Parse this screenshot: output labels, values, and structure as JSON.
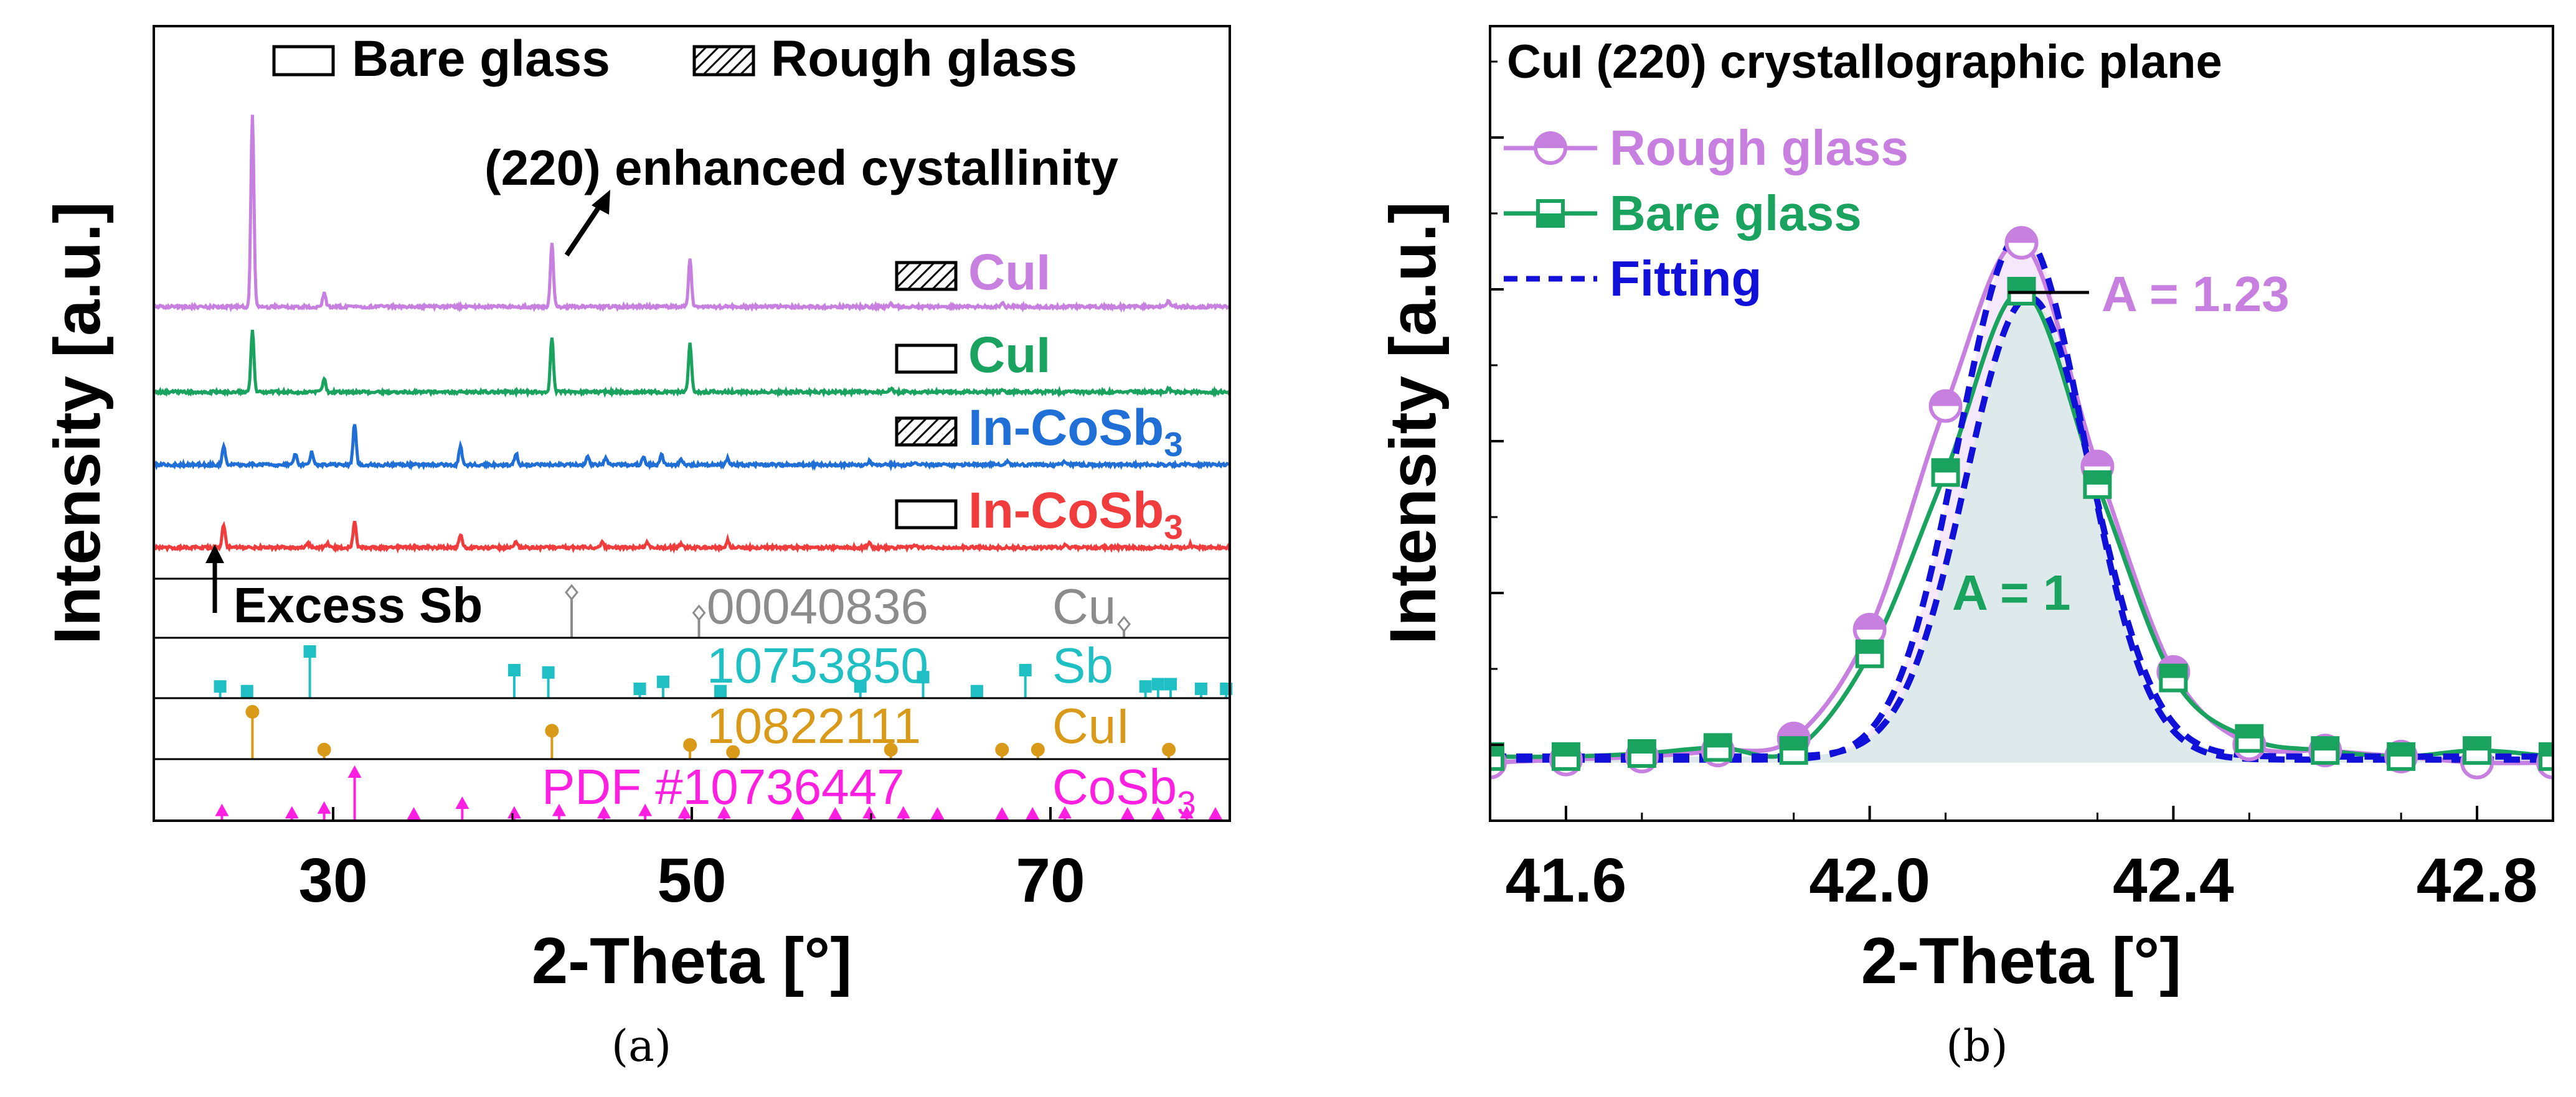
{
  "chart_data": [
    {
      "panel": "a",
      "type": "line",
      "caption": "(a)",
      "xlabel": "2-Theta [°]",
      "ylabel": "Intensity [a.u.]",
      "xlim": [
        20,
        80
      ],
      "xticks": [
        30,
        50,
        70
      ],
      "legend": {
        "bare": "Bare glass",
        "rough": "Rough glass"
      },
      "annotations": {
        "enhanced": "(220) enhanced cystallinity",
        "excess": "Excess Sb"
      },
      "series": [
        {
          "name": "CuI",
          "label": "CuI",
          "substrate": "rough",
          "color": "#c77fe0",
          "baseline": 0,
          "peaks": [
            [
              25.5,
              30
            ],
            [
              29.5,
              2.2
            ],
            [
              42.2,
              10
            ],
            [
              49.9,
              7.3
            ],
            [
              61.1,
              0.5
            ],
            [
              67.3,
              0.5
            ],
            [
              76.6,
              1.0
            ]
          ]
        },
        {
          "name": "CuI",
          "label": "CuI",
          "substrate": "bare",
          "color": "#1aa35e",
          "baseline": 0,
          "peaks": [
            [
              25.5,
              9.5
            ],
            [
              29.5,
              2.0
            ],
            [
              42.2,
              8.5
            ],
            [
              49.9,
              7.6
            ],
            [
              61.1,
              0.6
            ],
            [
              67.3,
              0.4
            ],
            [
              76.6,
              0.6
            ]
          ]
        },
        {
          "name": "In-CoSb3",
          "label": "In-CoSb",
          "sub": "3",
          "substrate": "rough",
          "color": "#1f6fd6",
          "baseline": 0,
          "peaks": [
            [
              23.9,
              2.9
            ],
            [
              27.9,
              1.7
            ],
            [
              28.8,
              2.0
            ],
            [
              31.2,
              6.5
            ],
            [
              37.1,
              3.0
            ],
            [
              40.2,
              1.8
            ],
            [
              44.2,
              1.3
            ],
            [
              45.2,
              1.0
            ],
            [
              47.3,
              1.2
            ],
            [
              48.3,
              1.6
            ],
            [
              49.4,
              1.0
            ],
            [
              52.0,
              1.0
            ],
            [
              59.9,
              0.6
            ],
            [
              62.5,
              0.5
            ],
            [
              67.6,
              0.5
            ],
            [
              70.8,
              0.5
            ]
          ]
        },
        {
          "name": "In-CoSb3",
          "label": "In-CoSb",
          "sub": "3",
          "substrate": "bare",
          "color": "#f03c3c",
          "baseline": 0,
          "peaks": [
            [
              23.9,
              3.6
            ],
            [
              28.6,
              0.6
            ],
            [
              29.7,
              0.6
            ],
            [
              31.2,
              4.0
            ],
            [
              37.1,
              2.0
            ],
            [
              40.2,
              0.8
            ],
            [
              45.0,
              0.8
            ],
            [
              47.5,
              0.9
            ],
            [
              49.4,
              0.6
            ],
            [
              52.0,
              1.1
            ],
            [
              59.9,
              0.7
            ],
            [
              62.5,
              0.4
            ],
            [
              70.8,
              0.5
            ],
            [
              77.8,
              0.5
            ]
          ]
        }
      ],
      "references": [
        {
          "id": "00040836",
          "phase": "Cu",
          "sub": "",
          "color": "#8c8c8c",
          "marker": "diamond",
          "lines": [
            [
              43.3,
              1.0
            ],
            [
              50.4,
              0.55
            ],
            [
              74.1,
              0.3
            ]
          ]
        },
        {
          "id": "10753850",
          "phase": "Sb",
          "sub": "",
          "color": "#1fbfc4",
          "marker": "square",
          "lines": [
            [
              23.7,
              0.25
            ],
            [
              25.2,
              0.15
            ],
            [
              28.7,
              1.0
            ],
            [
              40.1,
              0.6
            ],
            [
              42.0,
              0.55
            ],
            [
              47.1,
              0.2
            ],
            [
              48.4,
              0.35
            ],
            [
              51.6,
              0.15
            ],
            [
              59.4,
              0.25
            ],
            [
              62.9,
              0.45
            ],
            [
              65.9,
              0.15
            ],
            [
              68.6,
              0.6
            ],
            [
              75.3,
              0.25
            ],
            [
              76.0,
              0.3
            ],
            [
              76.7,
              0.3
            ],
            [
              78.4,
              0.2
            ],
            [
              79.8,
              0.2
            ]
          ]
        },
        {
          "id": "10822111",
          "phase": "CuI",
          "sub": "",
          "color": "#d99a1a",
          "marker": "circle",
          "lines": [
            [
              25.5,
              1.0
            ],
            [
              29.5,
              0.2
            ],
            [
              42.2,
              0.6
            ],
            [
              49.9,
              0.3
            ],
            [
              52.3,
              0.15
            ],
            [
              61.1,
              0.2
            ],
            [
              67.3,
              0.2
            ],
            [
              69.3,
              0.2
            ],
            [
              76.6,
              0.2
            ]
          ]
        },
        {
          "id": "PDF #10736447",
          "phase": "CoSb",
          "sub": "3",
          "color": "#ff1fe0",
          "marker": "triangle",
          "lines": [
            [
              23.8,
              0.2
            ],
            [
              27.7,
              0.15
            ],
            [
              29.5,
              0.25
            ],
            [
              31.2,
              1.0
            ],
            [
              34.5,
              0.1
            ],
            [
              37.2,
              0.35
            ],
            [
              40.1,
              0.15
            ],
            [
              42.6,
              0.2
            ],
            [
              45.1,
              0.15
            ],
            [
              47.4,
              0.2
            ],
            [
              49.6,
              0.15
            ],
            [
              51.8,
              0.15
            ],
            [
              55.9,
              0.1
            ],
            [
              58.0,
              0.1
            ],
            [
              59.9,
              0.15
            ],
            [
              61.8,
              0.15
            ],
            [
              63.7,
              0.1
            ],
            [
              67.3,
              0.1
            ],
            [
              69.0,
              0.1
            ],
            [
              70.8,
              0.15
            ],
            [
              74.3,
              0.1
            ],
            [
              76.0,
              0.1
            ],
            [
              77.6,
              0.15
            ],
            [
              79.2,
              0.1
            ]
          ]
        }
      ]
    },
    {
      "panel": "b",
      "type": "line",
      "caption": "(b)",
      "title": "CuI (220) crystallographic plane",
      "xlabel": "2-Theta [°]",
      "ylabel": "Intensity [a.u.]",
      "xlim": [
        41.5,
        42.9
      ],
      "ylim": [
        0,
        1.0
      ],
      "xticks": [
        41.6,
        42.0,
        42.4,
        42.8
      ],
      "xtick_labels": [
        "41.6",
        "42.0",
        "42.4",
        "42.8"
      ],
      "series": [
        {
          "name": "Rough glass",
          "color": "#c77fe0",
          "marker": "half-circle",
          "x": [
            41.5,
            41.6,
            41.7,
            41.8,
            41.9,
            42.0,
            42.1,
            42.2,
            42.3,
            42.4,
            42.5,
            42.6,
            42.7,
            42.8,
            42.9
          ],
          "y": [
            0.02,
            0.025,
            0.03,
            0.04,
            0.06,
            0.24,
            0.61,
            0.88,
            0.51,
            0.17,
            0.05,
            0.04,
            0.03,
            0.02,
            0.02
          ]
        },
        {
          "name": "Bare glass",
          "color": "#1aa35e",
          "marker": "half-square",
          "x": [
            41.5,
            41.6,
            41.7,
            41.8,
            41.9,
            42.0,
            42.1,
            42.2,
            42.3,
            42.4,
            42.5,
            42.6,
            42.7,
            42.8,
            42.9
          ],
          "y": [
            0.03,
            0.03,
            0.035,
            0.045,
            0.04,
            0.2,
            0.5,
            0.8,
            0.48,
            0.16,
            0.06,
            0.04,
            0.03,
            0.04,
            0.03
          ]
        },
        {
          "name": "Fitting",
          "color": "#1010d8",
          "style": "dashed",
          "fits": [
            {
              "center": 42.2,
              "amplitude": 0.87,
              "sigma": 0.083,
              "base": 0.025
            },
            {
              "center": 42.21,
              "amplitude": 0.76,
              "sigma": 0.083,
              "base": 0.03
            }
          ]
        }
      ],
      "annotations": {
        "area_rough": "A = 1.23",
        "area_bare": "A = 1"
      },
      "shading": {
        "rough": "#f6e8fb",
        "bare": "#dde9ea"
      }
    }
  ]
}
